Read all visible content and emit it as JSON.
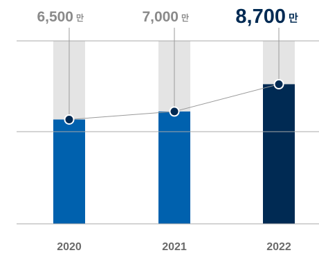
{
  "chart_data": {
    "type": "bar",
    "categories": [
      "2020",
      "2021",
      "2022"
    ],
    "values": [
      6500,
      7000,
      8700
    ],
    "value_labels": [
      "6,500",
      "7,000",
      "8,700"
    ],
    "unit_label": "만",
    "ylim": [
      0,
      11400
    ],
    "overlay_line": true,
    "grid": true,
    "legend": "none",
    "colors": {
      "bar": "#0061ae",
      "bar_highlight": "#002a53",
      "background_bar": "#e4e4e4",
      "label": "#8a8a8a",
      "label_highlight": "#002a53",
      "year_label": "#6a6a6a",
      "grid": "#a8a8a8",
      "line": "#9a9a9a"
    },
    "highlight_index": 2
  }
}
